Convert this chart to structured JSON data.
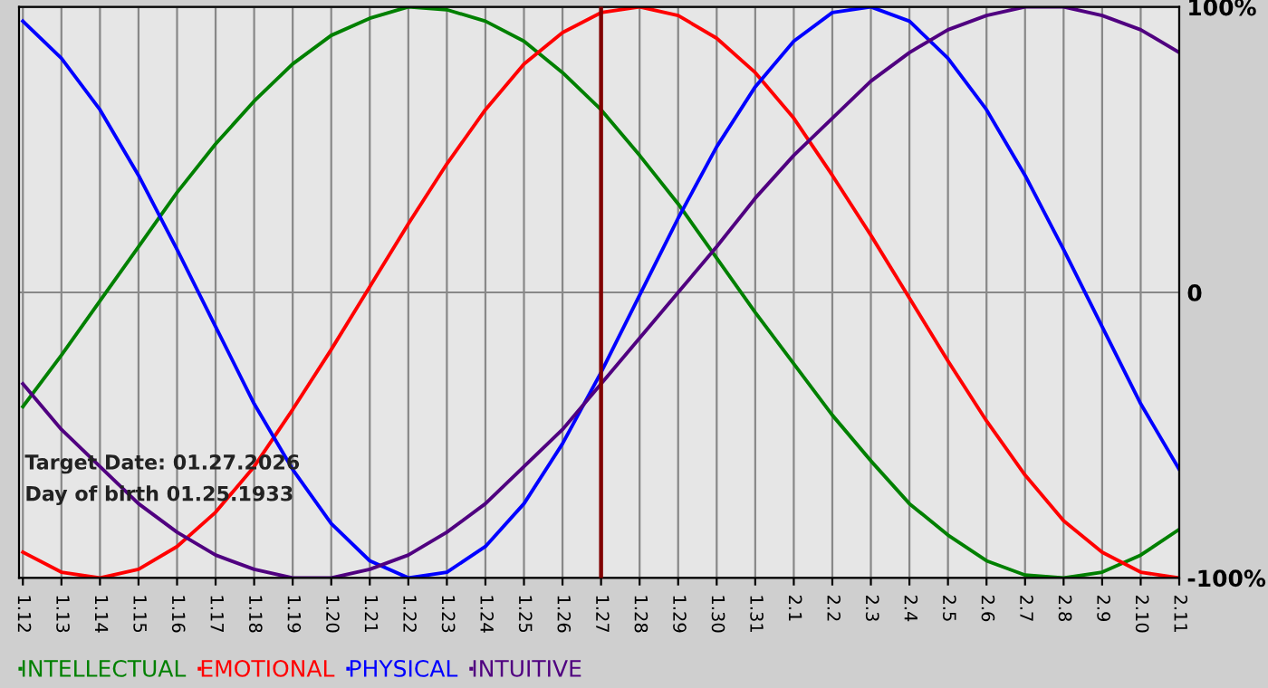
{
  "chart_data": {
    "type": "line",
    "categories": [
      "1.12",
      "1.13",
      "1.14",
      "1.15",
      "1.16",
      "1.17",
      "1.18",
      "1.19",
      "1.20",
      "1.21",
      "1.22",
      "1.23",
      "1.24",
      "1.25",
      "1.26",
      "1.27",
      "1.28",
      "1.29",
      "1.30",
      "1.31",
      "2.1",
      "2.2",
      "2.3",
      "2.4",
      "2.5",
      "2.6",
      "2.7",
      "2.8",
      "2.9",
      "2.10",
      "2.11"
    ],
    "series": [
      {
        "name": "INTELLECTUAL",
        "color": "#008000",
        "values": [
          -40,
          -22,
          -3,
          16,
          35,
          52,
          67,
          80,
          90,
          96,
          100,
          99,
          95,
          88,
          77,
          64,
          48,
          31,
          12,
          -7,
          -25,
          -43,
          -59,
          -74,
          -85,
          -94,
          -99,
          -100,
          -98,
          -92,
          -83
        ]
      },
      {
        "name": "EMOTIONAL",
        "color": "#ff0000",
        "values": [
          -91,
          -98,
          -100,
          -97,
          -89,
          -77,
          -61,
          -41,
          -20,
          2,
          24,
          45,
          64,
          80,
          91,
          98,
          100,
          97,
          89,
          77,
          61,
          41,
          20,
          -2,
          -24,
          -45,
          -64,
          -80,
          -91,
          -98,
          -100
        ]
      },
      {
        "name": "PHYSICAL",
        "color": "#0000ff",
        "values": [
          95,
          82,
          64,
          41,
          15,
          -12,
          -39,
          -62,
          -81,
          -94,
          -100,
          -98,
          -89,
          -74,
          -53,
          -28,
          -1,
          26,
          51,
          72,
          88,
          98,
          100,
          95,
          82,
          64,
          41,
          15,
          -12,
          -39,
          -62
        ]
      },
      {
        "name": "INTUITIVE",
        "color": "#500080",
        "values": [
          -32,
          -48,
          -61,
          -74,
          -84,
          -92,
          -97,
          -100,
          -100,
          -97,
          -92,
          -84,
          -74,
          -61,
          -48,
          -32,
          -16,
          0,
          16,
          33,
          48,
          61,
          74,
          84,
          92,
          97,
          100,
          100,
          97,
          92,
          84
        ]
      }
    ],
    "ylim": [
      -100,
      100
    ],
    "yticks": [
      {
        "value": 100,
        "label": "100%"
      },
      0,
      {
        "value": -100,
        "label": "-100%"
      }
    ],
    "grid": true,
    "legend": "bottom",
    "ref_lines": [
      {
        "axis": "x",
        "value": "1.27",
        "color": "#800000"
      }
    ],
    "annotations": [
      "Target Date: 01.27.2026",
      "Day of birth 01.25.1933"
    ]
  }
}
